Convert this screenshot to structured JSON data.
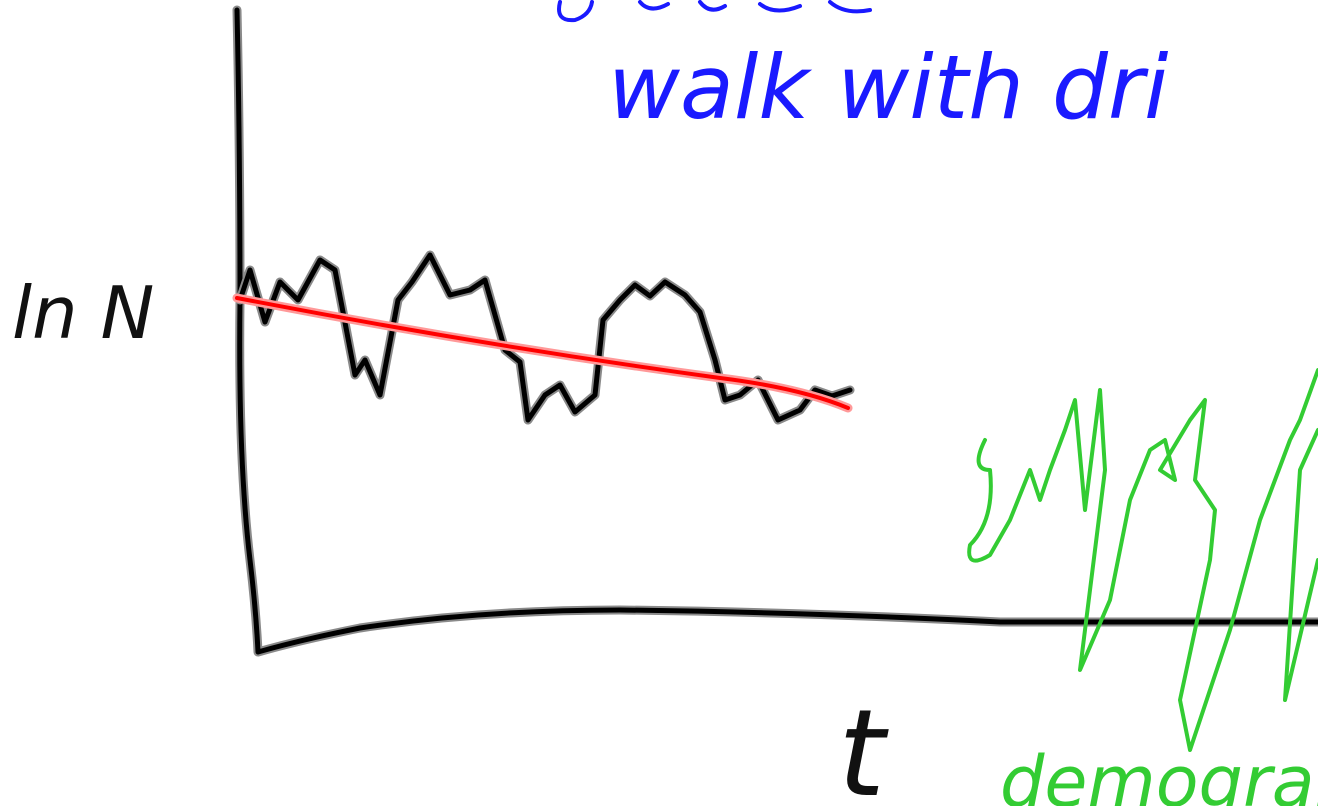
{
  "labels": {
    "top_note": "walk with dri",
    "y_axis": "ln N",
    "x_axis": "t",
    "bottom_note": "demograp"
  }
}
